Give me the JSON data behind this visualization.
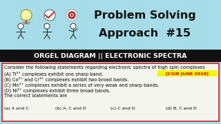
{
  "title_line1": "Problem Solving",
  "title_line2": "Approach  #15",
  "subtitle": "ORGEL DIAGRAM || ELECTRONIC SPECTRA",
  "bg_top": "#a8dde9",
  "bg_subtitle": "#111111",
  "bg_content": "#f5f5f0",
  "subtitle_color": "#ffffff",
  "title_color": "#111111",
  "question_text": "Consider the following statements regarding electronic spectra of high spin complexes",
  "tag": "[CSIR JUNE 2019]",
  "tag_bg": "#f5f500",
  "tag_color": "#cc0000",
  "statements": [
    "(A) Ti³⁺ complexes exhibit one sharp band.",
    "(B) Co²⁺ and Cr³⁺ complexes exhibit two broad bands.",
    "(C) Mn²⁺ complexes exhibit a series of very weak and sharp bands.",
    "(D) Ni²⁺ complexes exhibit three broad bands."
  ],
  "correct_line": "The correct statements are",
  "options": [
    "(a) A and C",
    "(b) A, C and D",
    "(c) C and D",
    "(d) B, C and D"
  ],
  "content_border": "#cc2222",
  "subtitle_fontsize": 6.8,
  "title_fontsize": 11.5,
  "body_fontsize": 4.8,
  "tag_fontsize": 4.6,
  "options_fontsize": 4.6
}
